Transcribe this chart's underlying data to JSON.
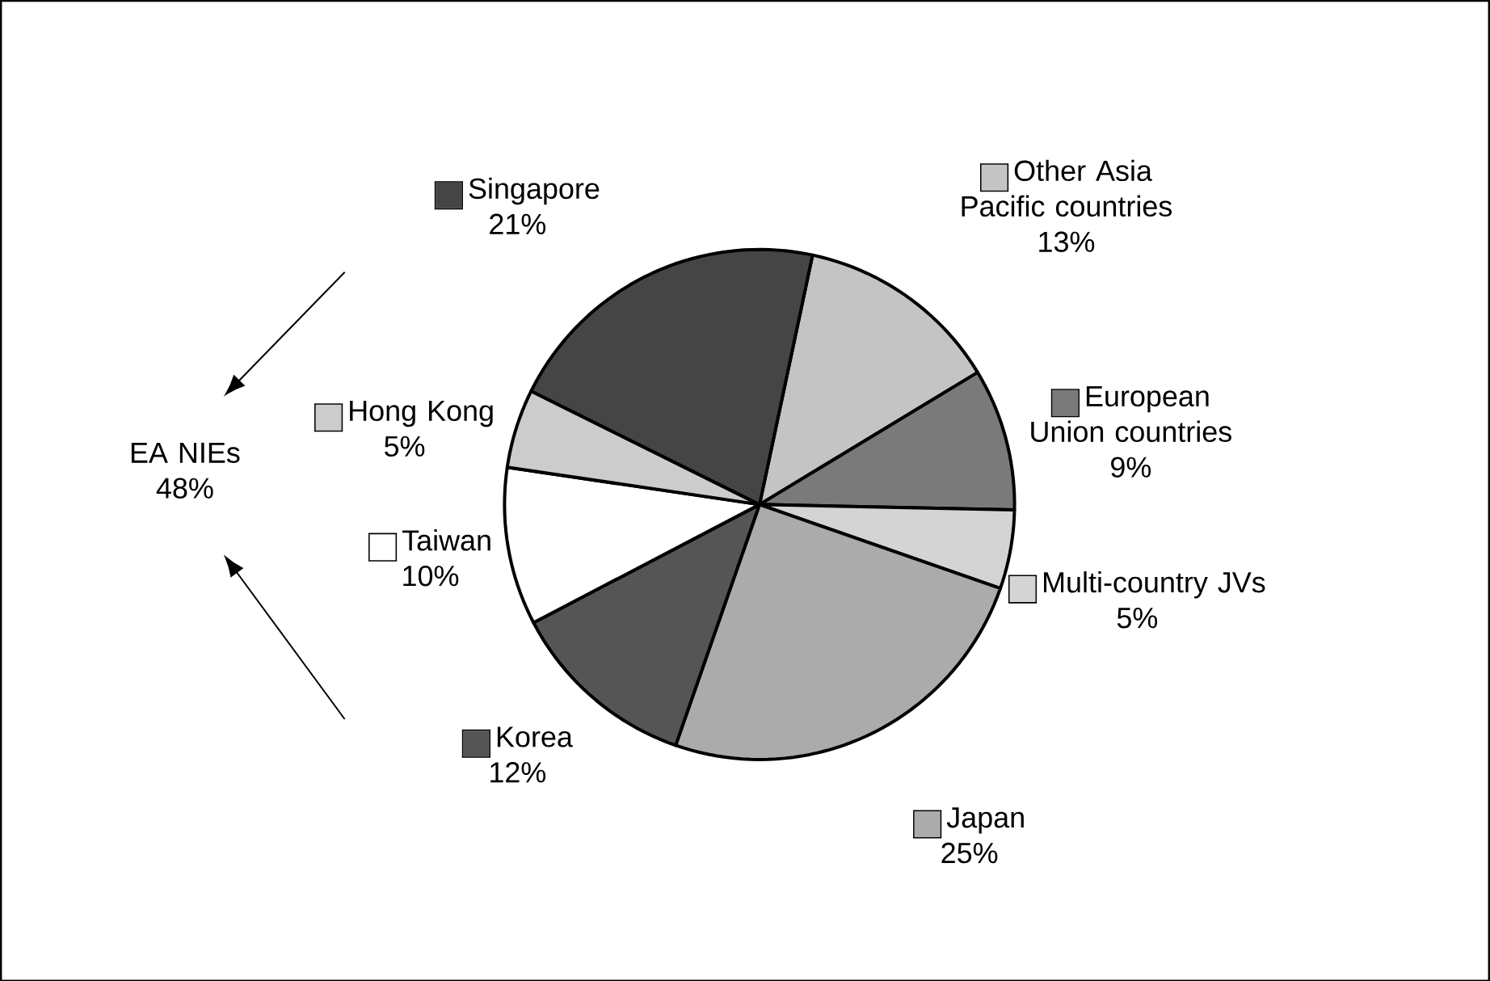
{
  "chart_data": {
    "type": "pie",
    "categories": [
      "Other Asia Pacific countries",
      "European Union countries",
      "Multi-country JVs",
      "Japan",
      "Korea",
      "Taiwan",
      "Hong Kong",
      "Singapore"
    ],
    "values": [
      13,
      9,
      5,
      25,
      12,
      10,
      5,
      21
    ],
    "value_labels": [
      "13%",
      "9%",
      "5%",
      "25%",
      "12%",
      "10%",
      "5%",
      "21%"
    ],
    "colors": [
      "#c4c4c4",
      "#7a7a7a",
      "#d4d4d4",
      "#ababab",
      "#555555",
      "#ffffff",
      "#cccccc",
      "#454545"
    ],
    "annotations": [
      "EA NIEs 48%"
    ],
    "legend": "right"
  }
}
